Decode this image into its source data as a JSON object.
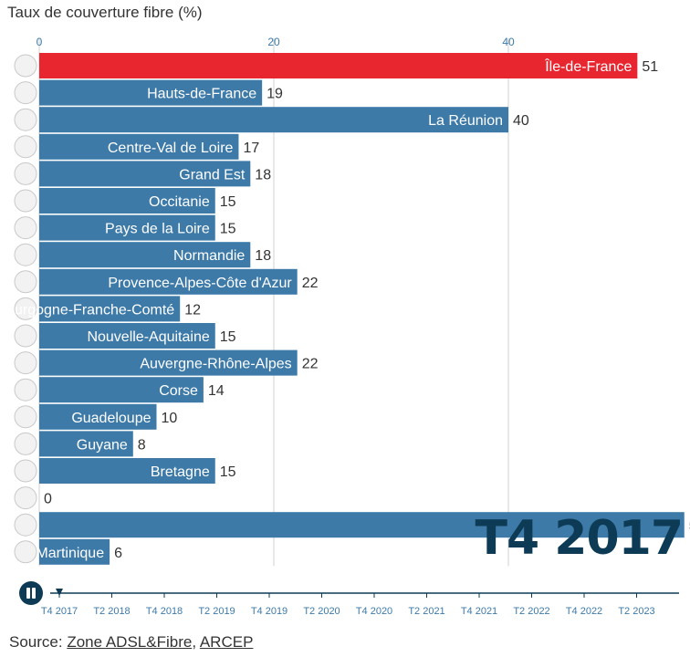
{
  "chart_data": {
    "type": "bar",
    "title": "Taux de couverture fibre (%)",
    "xlim": [
      0,
      55
    ],
    "x_ticks": [
      0,
      20,
      40
    ],
    "categories": [
      "Île-de-France",
      "Hauts-de-France",
      "La Réunion",
      "Centre-Val de Loire",
      "Grand Est",
      "Occitanie",
      "Pays de la Loire",
      "Normandie",
      "Provence-Alpes-Côte d'Azur",
      "Bourgogne-Franche-Comté",
      "Nouvelle-Aquitaine",
      "Auvergne-Rhône-Alpes",
      "Corse",
      "Guadeloupe",
      "Guyane",
      "Bretagne",
      "",
      "",
      "Martinique"
    ],
    "values": [
      51,
      19,
      40,
      17,
      18,
      15,
      15,
      18,
      22,
      12,
      15,
      22,
      14,
      10,
      8,
      15,
      0,
      55,
      6
    ],
    "highlight_index": 0,
    "colors": {
      "bar": "#3d7aa8",
      "highlight": "#e8262f",
      "grid": "#d0d0d0",
      "period": "#0d3b55"
    },
    "period": "T4 2017",
    "timeline": [
      "T4 2017",
      "T2 2018",
      "T4 2018",
      "T2 2019",
      "T4 2019",
      "T2 2020",
      "T4 2020",
      "T2 2021",
      "T4 2021",
      "T2 2022",
      "T4 2022",
      "T2 2023"
    ],
    "timeline_position": 0
  },
  "controls": {
    "play_icon": "pause-icon"
  },
  "source": {
    "prefix": "Source: ",
    "link1": "Zone ADSL&Fibre",
    "separator": ", ",
    "link2": "ARCEP"
  }
}
